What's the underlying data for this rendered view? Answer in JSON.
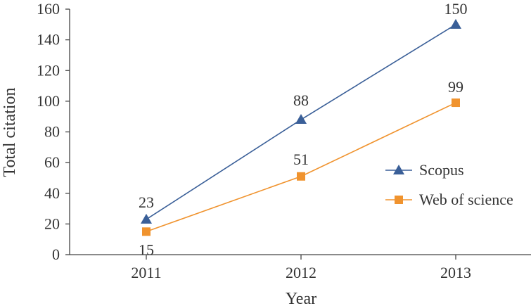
{
  "chart_data": {
    "type": "line",
    "x": [
      "2011",
      "2012",
      "2013"
    ],
    "xlabel": "Year",
    "ylabel": "Total citation",
    "ylim": [
      0,
      160
    ],
    "yticks": [
      0,
      20,
      40,
      60,
      80,
      100,
      120,
      140,
      160
    ],
    "grid": false,
    "legend_position": "right",
    "series": [
      {
        "name": "Scopus",
        "values": [
          23,
          88,
          150
        ],
        "color": "#3a5f98",
        "marker": "triangle"
      },
      {
        "name": "Web of science",
        "values": [
          15,
          51,
          99
        ],
        "color": "#f0932e",
        "marker": "square"
      }
    ]
  }
}
